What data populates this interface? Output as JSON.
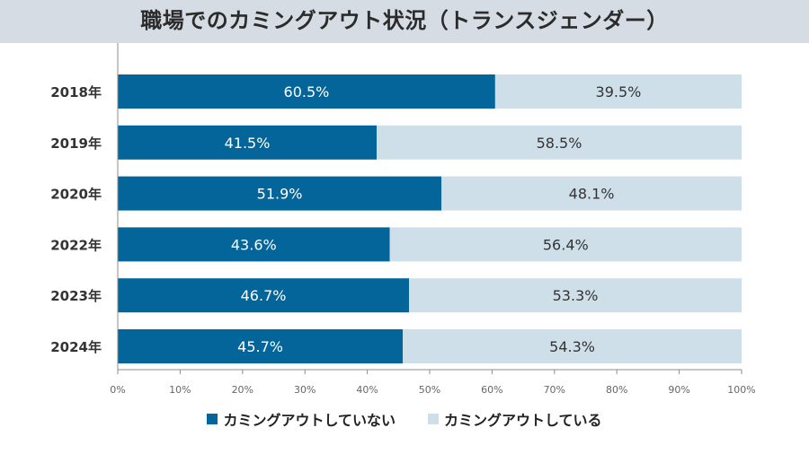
{
  "chart_data": {
    "type": "bar",
    "orientation": "horizontal",
    "stacked": true,
    "title": "職場でのカミングアウト状況（トランスジェンダー）",
    "categories": [
      "2018年",
      "2019年",
      "2020年",
      "2022年",
      "2023年",
      "2024年"
    ],
    "series": [
      {
        "name": "カミングアウトしていない",
        "color": "#04659a",
        "values": [
          60.5,
          41.5,
          51.9,
          43.6,
          46.7,
          45.7
        ],
        "labels": [
          "60.5%",
          "41.5%",
          "51.9%",
          "43.6%",
          "46.7%",
          "45.7%"
        ]
      },
      {
        "name": "カミングアウトしている",
        "color": "#cfdfe9",
        "values": [
          39.5,
          58.5,
          48.1,
          56.4,
          53.3,
          54.3
        ],
        "labels": [
          "39.5%",
          "58.5%",
          "48.1%",
          "56.4%",
          "53.3%",
          "54.3%"
        ]
      }
    ],
    "xlim": [
      0,
      100
    ],
    "xticks": [
      "0%",
      "10%",
      "20%",
      "30%",
      "40%",
      "50%",
      "60%",
      "70%",
      "80%",
      "90%",
      "100%"
    ],
    "xlabel": "",
    "ylabel": "",
    "grid": false,
    "legend_position": "bottom"
  }
}
